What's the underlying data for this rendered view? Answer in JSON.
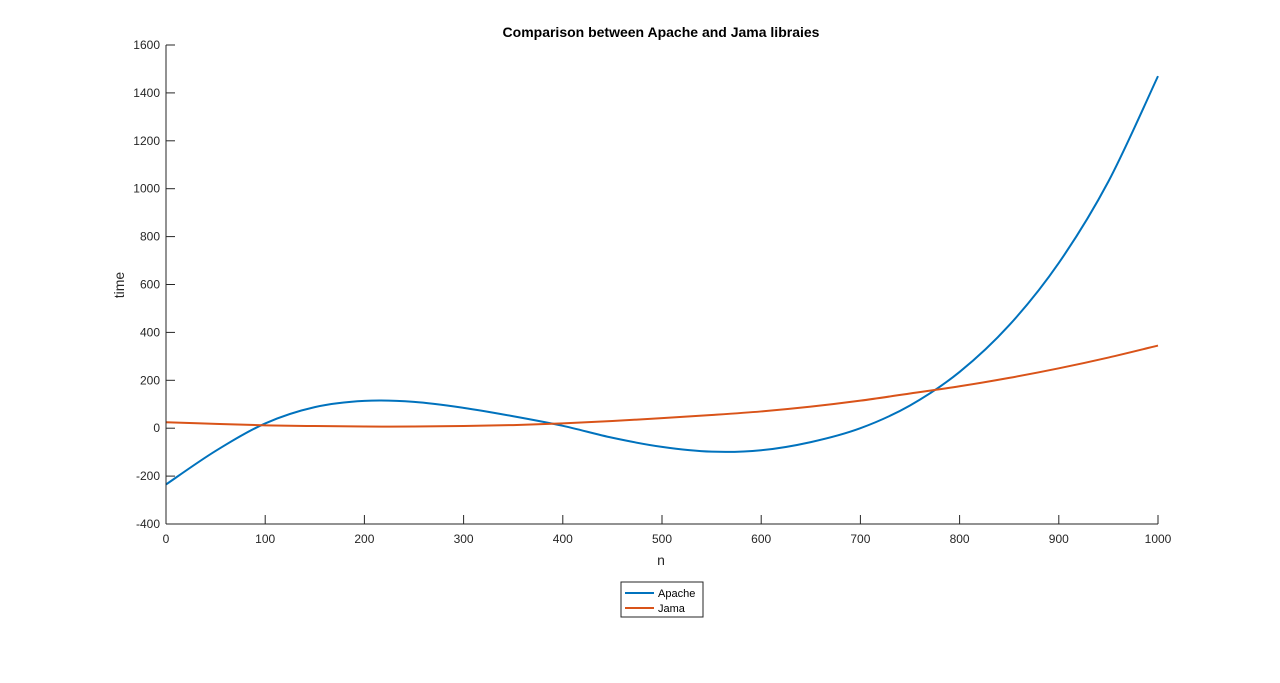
{
  "chart_data": {
    "type": "line",
    "title": "Comparison between Apache and Jama libraies",
    "xlabel": "n",
    "ylabel": "time",
    "xlim": [
      0,
      1000
    ],
    "ylim": [
      -400,
      1600
    ],
    "xticks": [
      0,
      100,
      200,
      300,
      400,
      500,
      600,
      700,
      800,
      900,
      1000
    ],
    "yticks": [
      -400,
      -200,
      0,
      200,
      400,
      600,
      800,
      1000,
      1200,
      1400,
      1600
    ],
    "grid": false,
    "legend_position": "bottom-center-outside",
    "x": [
      0,
      50,
      100,
      150,
      200,
      250,
      300,
      350,
      400,
      450,
      500,
      550,
      600,
      650,
      700,
      750,
      800,
      850,
      900,
      950,
      1000
    ],
    "series": [
      {
        "name": "Apache",
        "color": "#0072BD",
        "values": [
          -235,
          -95,
          20,
          88,
          114,
          110,
          85,
          50,
          10,
          -40,
          -78,
          -98,
          -92,
          -58,
          0,
          95,
          235,
          430,
          690,
          1030,
          1470
        ]
      },
      {
        "name": "Jama",
        "color": "#D95319",
        "values": [
          25,
          18,
          12,
          9,
          7,
          7,
          9,
          13,
          20,
          30,
          42,
          55,
          70,
          90,
          115,
          145,
          175,
          210,
          250,
          295,
          345
        ]
      }
    ]
  }
}
